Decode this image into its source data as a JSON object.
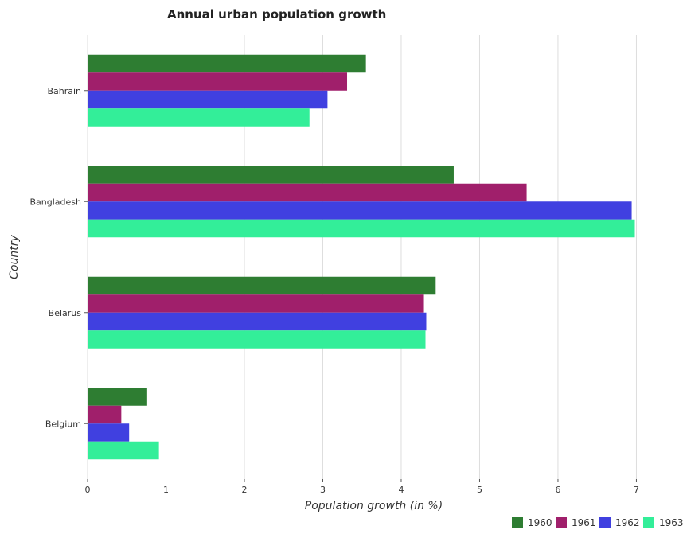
{
  "chart_data": {
    "type": "bar",
    "orientation": "horizontal",
    "title": "Annual urban population growth",
    "xlabel": "Population growth (in %)",
    "ylabel": "Country",
    "categories": [
      "Bahrain",
      "Bangladesh",
      "Belarus",
      "Belgium"
    ],
    "xlim": [
      0,
      7.3
    ],
    "x_ticks": [
      0,
      1,
      2,
      3,
      4,
      5,
      6,
      7
    ],
    "x_tick_labels": [
      "0",
      "1",
      "2",
      "3",
      "4",
      "5",
      "6",
      "7"
    ],
    "grid": true,
    "legend_position": "bottom-right",
    "series": [
      {
        "name": "1960",
        "color": "#2e7d32",
        "values": [
          3.55,
          4.67,
          4.44,
          0.76
        ]
      },
      {
        "name": "1961",
        "color": "#a01f6b",
        "values": [
          3.31,
          5.6,
          4.29,
          0.43
        ]
      },
      {
        "name": "1962",
        "color": "#4040e0",
        "values": [
          3.06,
          6.94,
          4.32,
          0.53
        ]
      },
      {
        "name": "1963",
        "color": "#33ee99",
        "values": [
          2.83,
          6.98,
          4.31,
          0.91
        ]
      }
    ]
  }
}
